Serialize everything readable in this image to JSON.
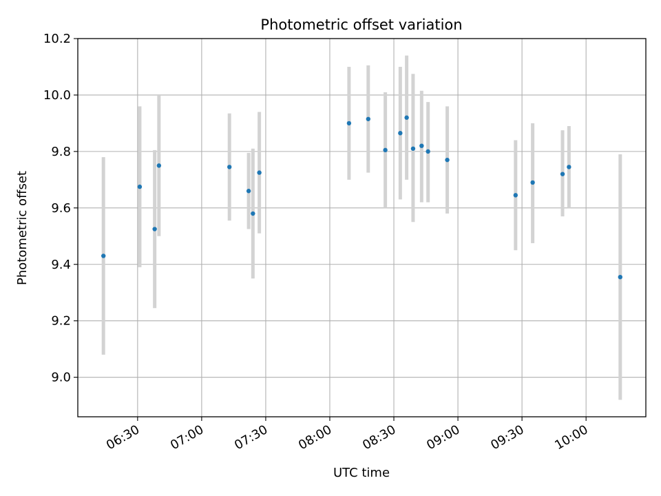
{
  "chart_data": {
    "type": "scatter",
    "title": "Photometric offset variation",
    "xlabel": "UTC time",
    "ylabel": "Photometric offset",
    "xlim": [
      "06:02",
      "10:28"
    ],
    "ylim": [
      8.86,
      10.2
    ],
    "xticks": [
      "06:30",
      "07:00",
      "07:30",
      "08:00",
      "08:30",
      "09:00",
      "09:30",
      "10:00"
    ],
    "yticks": [
      "9.0",
      "9.2",
      "9.4",
      "9.6",
      "9.8",
      "10.0",
      "10.2"
    ],
    "grid": true,
    "error_bar_color": "#d3d3d3",
    "point_color": "#1f77b4",
    "series": [
      {
        "points": [
          {
            "x": "06:14",
            "y": 9.43,
            "ymin": 9.08,
            "ymax": 9.78
          },
          {
            "x": "06:31",
            "y": 9.675,
            "ymin": 9.39,
            "ymax": 9.96
          },
          {
            "x": "06:38",
            "y": 9.525,
            "ymin": 9.245,
            "ymax": 9.805
          },
          {
            "x": "06:40",
            "y": 9.75,
            "ymin": 9.5,
            "ymax": 10.0
          },
          {
            "x": "07:13",
            "y": 9.745,
            "ymin": 9.555,
            "ymax": 9.935
          },
          {
            "x": "07:22",
            "y": 9.66,
            "ymin": 9.525,
            "ymax": 9.795
          },
          {
            "x": "07:24",
            "y": 9.58,
            "ymin": 9.35,
            "ymax": 9.81
          },
          {
            "x": "07:27",
            "y": 9.725,
            "ymin": 9.51,
            "ymax": 9.94
          },
          {
            "x": "08:09",
            "y": 9.9,
            "ymin": 9.7,
            "ymax": 10.1
          },
          {
            "x": "08:18",
            "y": 9.915,
            "ymin": 9.725,
            "ymax": 10.105
          },
          {
            "x": "08:26",
            "y": 9.805,
            "ymin": 9.6,
            "ymax": 10.01
          },
          {
            "x": "08:33",
            "y": 9.865,
            "ymin": 9.63,
            "ymax": 10.1
          },
          {
            "x": "08:36",
            "y": 9.92,
            "ymin": 9.7,
            "ymax": 10.14
          },
          {
            "x": "08:39",
            "y": 9.81,
            "ymin": 9.55,
            "ymax": 10.075
          },
          {
            "x": "08:43",
            "y": 9.82,
            "ymin": 9.62,
            "ymax": 10.015
          },
          {
            "x": "08:46",
            "y": 9.8,
            "ymin": 9.62,
            "ymax": 9.975
          },
          {
            "x": "08:55",
            "y": 9.77,
            "ymin": 9.58,
            "ymax": 9.96
          },
          {
            "x": "09:27",
            "y": 9.645,
            "ymin": 9.45,
            "ymax": 9.84
          },
          {
            "x": "09:35",
            "y": 9.69,
            "ymin": 9.475,
            "ymax": 9.9
          },
          {
            "x": "09:49",
            "y": 9.72,
            "ymin": 9.57,
            "ymax": 9.875
          },
          {
            "x": "09:52",
            "y": 9.745,
            "ymin": 9.6,
            "ymax": 9.89
          },
          {
            "x": "10:16",
            "y": 9.355,
            "ymin": 8.92,
            "ymax": 9.79
          }
        ]
      }
    ]
  }
}
